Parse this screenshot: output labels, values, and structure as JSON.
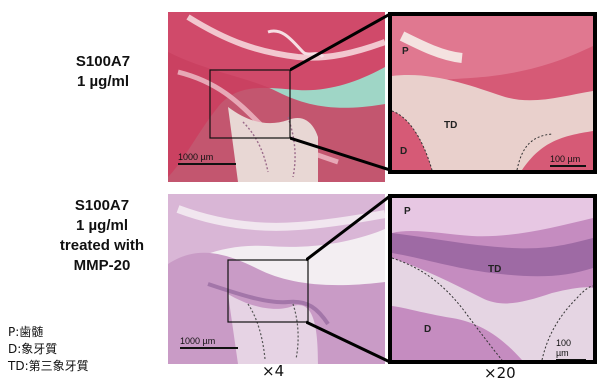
{
  "rows": [
    {
      "label_lines": [
        "S100A7",
        "1 µg/ml"
      ],
      "low_scale": "1000 µm",
      "high_scale": "100 µm",
      "letters": {
        "p": "P",
        "d": "D",
        "td": "TD"
      },
      "stain": "#d8647c"
    },
    {
      "label_lines": [
        "S100A7",
        "1 µg/ml",
        "treated with",
        "MMP-20"
      ],
      "low_scale": "1000 µm",
      "high_scale": "100 µm",
      "letters": {
        "p": "P",
        "d": "D",
        "td": "TD"
      },
      "stain": "#c58cc0"
    }
  ],
  "legend": [
    "P:歯髄",
    "D:象牙質",
    "TD:第三象牙質"
  ],
  "magnifications": {
    "low": "×4",
    "high": "×20"
  }
}
